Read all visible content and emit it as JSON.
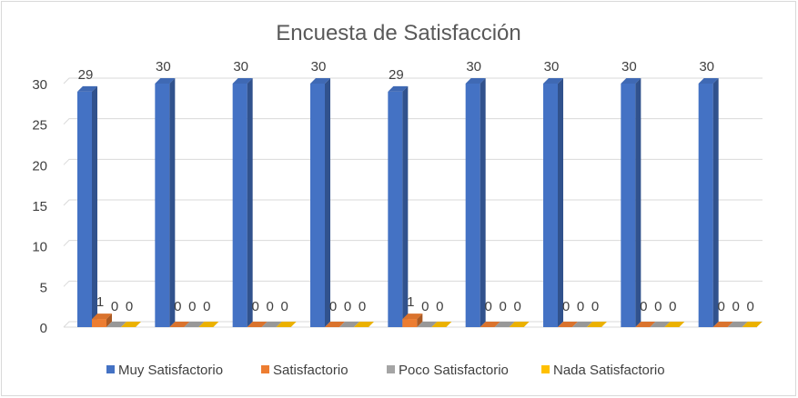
{
  "chart_data": {
    "type": "bar",
    "title": "Encuesta de Satisfacción",
    "categories": [
      "",
      "",
      "",
      "",
      "",
      "",
      "",
      "",
      ""
    ],
    "series": [
      {
        "name": "Muy Satisfactorio",
        "values": [
          29,
          30,
          30,
          30,
          29,
          30,
          30,
          30,
          30
        ],
        "color": "#4472C4"
      },
      {
        "name": "Satisfactorio",
        "values": [
          1,
          0,
          0,
          0,
          1,
          0,
          0,
          0,
          0
        ],
        "color": "#ED7D31"
      },
      {
        "name": "Poco Satisfactorio",
        "values": [
          0,
          0,
          0,
          0,
          0,
          0,
          0,
          0,
          0
        ],
        "color": "#A5A5A5"
      },
      {
        "name": "Nada Satisfactorio",
        "values": [
          0,
          0,
          0,
          0,
          0,
          0,
          0,
          0,
          0
        ],
        "color": "#FFC000"
      }
    ],
    "y_ticks": [
      0,
      5,
      10,
      15,
      20,
      25,
      30
    ],
    "ylim": [
      0,
      30
    ],
    "grid": true,
    "legend_position": "bottom",
    "style_3d": true
  }
}
